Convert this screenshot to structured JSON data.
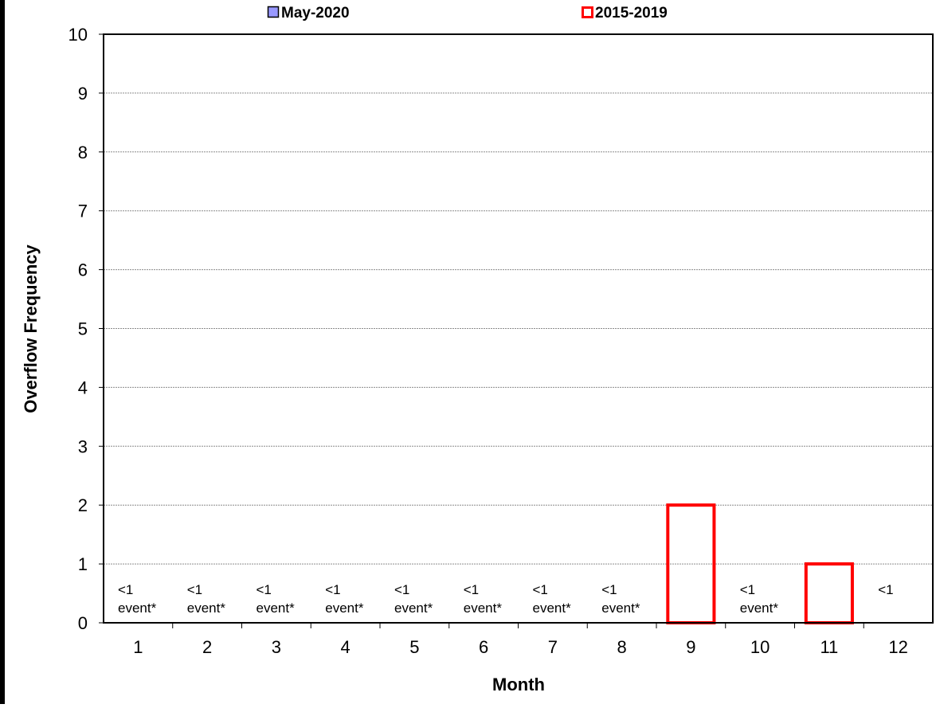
{
  "chart_data": {
    "type": "bar",
    "xlabel": "Month",
    "ylabel": "Overflow Frequency",
    "categories": [
      "1",
      "2",
      "3",
      "4",
      "5",
      "6",
      "7",
      "8",
      "9",
      "10",
      "11",
      "12"
    ],
    "ylim": [
      0,
      10
    ],
    "yticks": [
      "0",
      "1",
      "2",
      "3",
      "4",
      "5",
      "6",
      "7",
      "8",
      "9",
      "10"
    ],
    "grid": "horizontal",
    "legend_placement": "top",
    "series": [
      {
        "name": "May-2020",
        "color": "#9999ff",
        "style": "filled",
        "values": [
          0,
          0,
          0,
          0,
          0,
          0,
          0,
          0,
          0,
          0,
          0,
          0
        ]
      },
      {
        "name": "2015-2019",
        "color": "#ff0000",
        "style": "outline",
        "values": [
          0,
          0,
          0,
          0,
          0,
          0,
          0,
          0,
          2,
          0,
          1,
          0
        ]
      }
    ],
    "annotations": [
      {
        "category": "1",
        "lines": [
          "<1",
          "event*"
        ]
      },
      {
        "category": "2",
        "lines": [
          "<1",
          "event*"
        ]
      },
      {
        "category": "3",
        "lines": [
          "<1",
          "event*"
        ]
      },
      {
        "category": "4",
        "lines": [
          "<1",
          "event*"
        ]
      },
      {
        "category": "5",
        "lines": [
          "<1",
          "event*"
        ]
      },
      {
        "category": "6",
        "lines": [
          "<1",
          "event*"
        ]
      },
      {
        "category": "7",
        "lines": [
          "<1",
          "event*"
        ]
      },
      {
        "category": "8",
        "lines": [
          "<1",
          "event*"
        ]
      },
      {
        "category": "10",
        "lines": [
          "<1",
          "event*"
        ]
      },
      {
        "category": "12",
        "lines": [
          "<1"
        ]
      }
    ]
  }
}
